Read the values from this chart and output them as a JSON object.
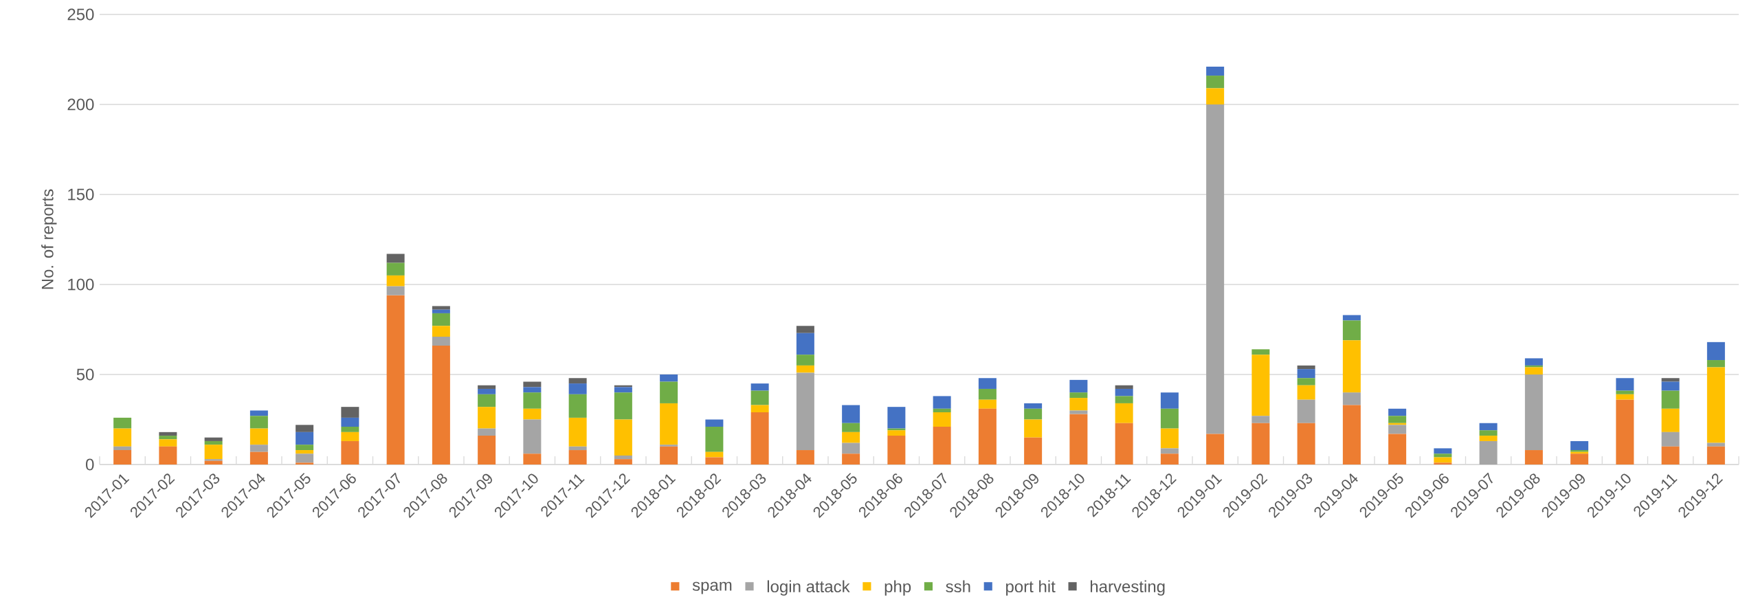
{
  "chart_data": {
    "type": "bar",
    "stacked": true,
    "ylabel": "No. of reports",
    "categories": [
      "2017-01",
      "2017-02",
      "2017-03",
      "2017-04",
      "2017-05",
      "2017-06",
      "2017-07",
      "2017-08",
      "2017-09",
      "2017-10",
      "2017-11",
      "2017-12",
      "2018-01",
      "2018-02",
      "2018-03",
      "2018-04",
      "2018-05",
      "2018-06",
      "2018-07",
      "2018-08",
      "2018-09",
      "2018-10",
      "2018-11",
      "2018-12",
      "2019-01",
      "2019-02",
      "2019-03",
      "2019-04",
      "2019-05",
      "2019-06",
      "2019-07",
      "2019-08",
      "2019-09",
      "2019-10",
      "2019-11",
      "2019-12"
    ],
    "series": [
      {
        "name": "spam",
        "color": "#ed7d31",
        "values": [
          8,
          10,
          2,
          7,
          1,
          13,
          94,
          66,
          16,
          6,
          8,
          3,
          10,
          4,
          29,
          8,
          6,
          16,
          21,
          31,
          15,
          28,
          23,
          6,
          17,
          23,
          23,
          33,
          17,
          1,
          0,
          8,
          6,
          36,
          10,
          10
        ]
      },
      {
        "name": "login attack",
        "color": "#a5a5a5",
        "values": [
          2,
          0,
          1,
          4,
          5,
          0,
          5,
          5,
          4,
          19,
          2,
          2,
          1,
          0,
          0,
          43,
          6,
          0,
          0,
          0,
          0,
          2,
          0,
          3,
          183,
          4,
          13,
          7,
          5,
          0,
          13,
          42,
          0,
          0,
          8,
          2
        ]
      },
      {
        "name": "php",
        "color": "#ffc000",
        "values": [
          10,
          4,
          8,
          9,
          2,
          5,
          6,
          6,
          12,
          6,
          16,
          20,
          23,
          3,
          4,
          4,
          6,
          3,
          8,
          5,
          10,
          7,
          11,
          11,
          9,
          34,
          8,
          29,
          1,
          3,
          3,
          4,
          1,
          3,
          13,
          42
        ]
      },
      {
        "name": "ssh",
        "color": "#70ad47",
        "values": [
          6,
          2,
          2,
          7,
          3,
          3,
          7,
          7,
          7,
          9,
          13,
          15,
          12,
          14,
          8,
          6,
          5,
          1,
          2,
          6,
          6,
          3,
          4,
          11,
          7,
          3,
          4,
          11,
          4,
          2,
          3,
          1,
          1,
          2,
          10,
          4
        ]
      },
      {
        "name": "port hit",
        "color": "#4472c4",
        "values": [
          0,
          0,
          0,
          3,
          7,
          5,
          0,
          2,
          3,
          3,
          6,
          3,
          4,
          4,
          4,
          12,
          10,
          12,
          7,
          6,
          3,
          7,
          4,
          9,
          5,
          0,
          5,
          3,
          4,
          3,
          4,
          4,
          5,
          7,
          5,
          10
        ]
      },
      {
        "name": "harvesting",
        "color": "#636363",
        "values": [
          0,
          2,
          2,
          0,
          4,
          6,
          5,
          2,
          2,
          3,
          3,
          1,
          0,
          0,
          0,
          4,
          0,
          0,
          0,
          0,
          0,
          0,
          2,
          0,
          0,
          0,
          2,
          0,
          0,
          0,
          0,
          0,
          0,
          0,
          2,
          0
        ]
      }
    ],
    "ylim": [
      0,
      250
    ],
    "yticks": [
      0,
      50,
      100,
      150,
      200,
      250
    ],
    "grid": "y",
    "legend": "bottom"
  }
}
